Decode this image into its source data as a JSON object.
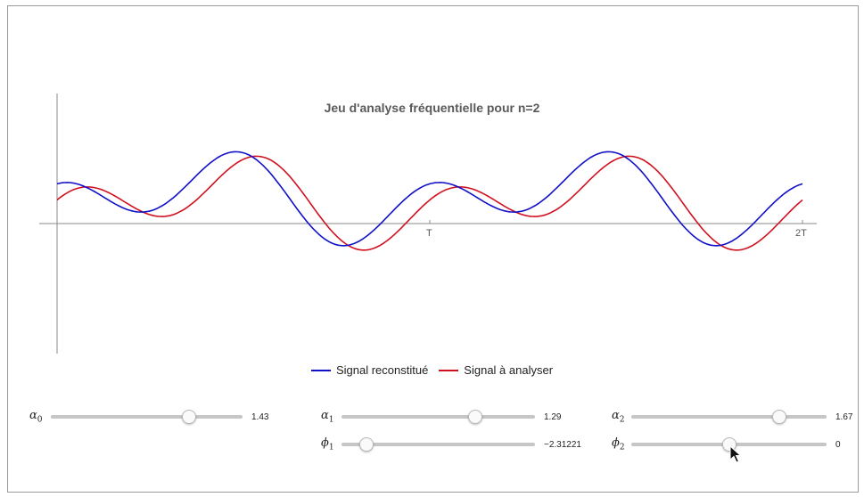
{
  "title": "Jeu d'analyse fréquentielle pour n=2",
  "colors": {
    "reconstituted": "#1010c8",
    "analyser": "#d0101f",
    "axis": "#8a8a8a"
  },
  "legend": {
    "reconstituted": "Signal reconstitué",
    "analyser": "Signal à analyser"
  },
  "axis_ticks": {
    "T": "T",
    "2T": "2T"
  },
  "controls": {
    "a0": {
      "symbol": "α",
      "sub": "0",
      "value": 1.43,
      "value_label": "1.43",
      "fraction": 0.72
    },
    "a1": {
      "symbol": "α",
      "sub": "1",
      "value": 1.29,
      "value_label": "1.29",
      "fraction": 0.69
    },
    "a2": {
      "symbol": "α",
      "sub": "2",
      "value": 1.67,
      "value_label": "1.67",
      "fraction": 0.76
    },
    "phi1": {
      "symbol": "ϕ",
      "sub": "1",
      "value": -2.31221,
      "value_label": "−2.31221",
      "fraction": 0.13
    },
    "phi2": {
      "symbol": "ϕ",
      "sub": "2",
      "value": 0,
      "value_label": "0",
      "fraction": 0.5
    }
  },
  "chart_data": {
    "type": "line",
    "title": "Jeu d'analyse fréquentielle pour n=2",
    "x_ticks": [
      "T",
      "2T"
    ],
    "xlim": [
      0,
      2
    ],
    "series": [
      {
        "name": "Signal reconstitué"
      },
      {
        "name": "Signal à analyser"
      }
    ],
    "grid": false,
    "legend_position": "bottom"
  }
}
